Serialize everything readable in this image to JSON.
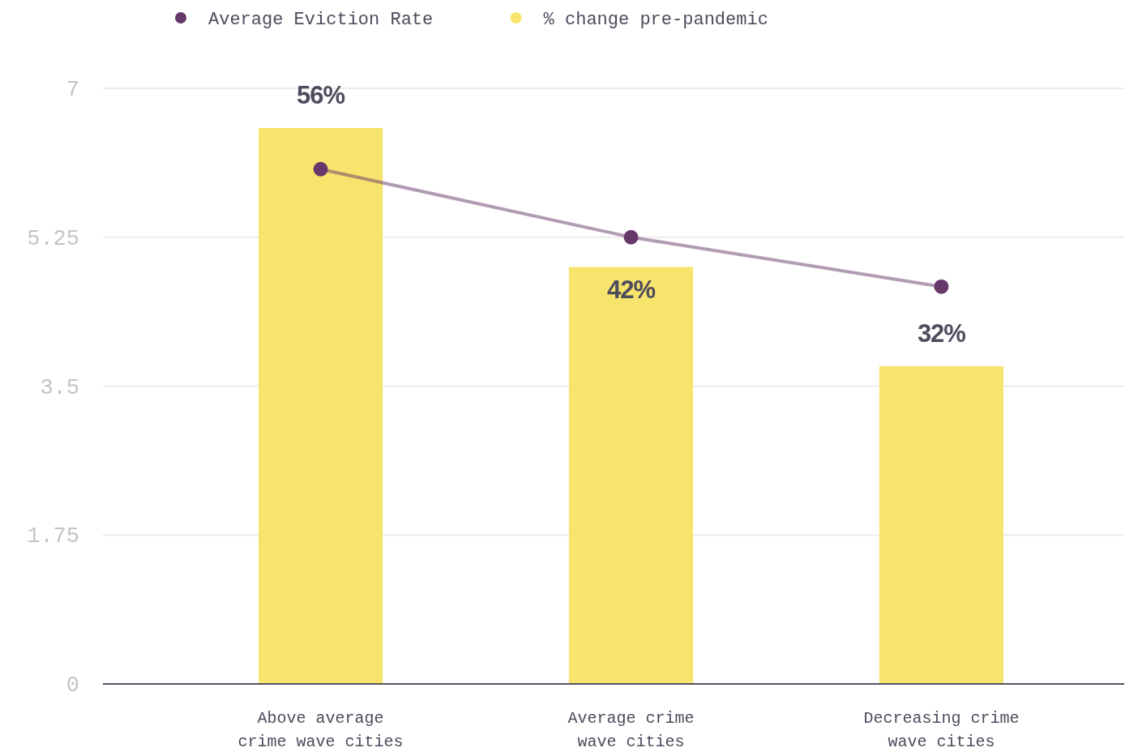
{
  "chart_data": {
    "type": "bar",
    "categories": [
      "Above average crime wave cities",
      "Average crime wave cities",
      "Decreasing crime wave cities"
    ],
    "series": [
      {
        "name": "Average Eviction Rate",
        "type": "line",
        "color": "#66386a",
        "values": [
          6.05,
          5.25,
          4.67
        ]
      },
      {
        "name": "% change pre-pandemic",
        "axis": "y2",
        "color": "#f6e46c",
        "values": [
          56,
          42,
          32
        ],
        "value_labels": [
          "56%",
          "42%",
          "32%"
        ]
      }
    ],
    "ylim": [
      0,
      7
    ],
    "yticks": [
      0,
      1.75,
      5.25,
      3.5,
      7
    ],
    "y2lim": [
      0,
      60
    ],
    "grid": "y",
    "legend": "top",
    "marker": "circle",
    "line_style": "solid"
  }
}
